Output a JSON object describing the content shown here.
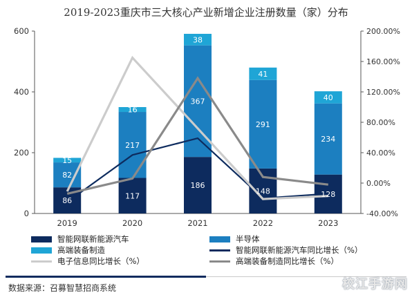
{
  "title": "2019-2023重庆市三大核心产业新增企业注册数量（家）分布",
  "colors": {
    "ev": "#0d2b5e",
    "semi": "#1c7fc0",
    "equip": "#1fa5d6",
    "ev_line": "#0d2b5e",
    "elec_line": "#cccccc",
    "equip_line": "#8a8a8a"
  },
  "legend": {
    "ev": "智能网联新能源汽车",
    "semi": "半导体",
    "equip": "高端装备制造",
    "ev_growth": "智能网联新能源汽车同比增长（%）",
    "elec_growth": "电子信息同比增长（%）",
    "equip_growth": "高端装备制造同比增长（%）"
  },
  "source": "数据来源：召募智慧招商系统",
  "watermark": "校江手游网",
  "chart_data": {
    "type": "bar",
    "stacked": true,
    "categories": [
      "2019",
      "2020",
      "2021",
      "2022",
      "2023"
    ],
    "series": [
      {
        "name": "智能网联新能源汽车",
        "values": [
          86,
          117,
          186,
          148,
          128
        ]
      },
      {
        "name": "半导体",
        "values": [
          82,
          217,
          367,
          291,
          234
        ]
      },
      {
        "name": "高端装备制造",
        "values": [
          15,
          16,
          38,
          41,
          40
        ]
      }
    ],
    "series_labels": [
      [
        "86",
        "117",
        "186",
        "148",
        "128"
      ],
      [
        "82",
        "217",
        "367",
        "291",
        "234"
      ],
      [
        "15",
        "16",
        "38",
        "41",
        "40"
      ]
    ],
    "line_series": [
      {
        "name": "智能网联新能源汽车同比增长（%）",
        "values": [
          -25,
          37,
          59,
          -20,
          -14
        ]
      },
      {
        "name": "电子信息同比增长（%）",
        "values": [
          -11,
          165,
          72,
          -21,
          -17
        ]
      },
      {
        "name": "高端装备制造同比增长（%）",
        "values": [
          -14,
          6,
          138,
          8,
          -2
        ]
      }
    ],
    "left_axis": {
      "ylim": [
        0,
        600
      ],
      "ticks": [
        "0",
        "200",
        "400",
        "600"
      ]
    },
    "right_axis": {
      "ylim": [
        -40,
        200
      ],
      "ticks": [
        "-40.00%",
        "0.00%",
        "40.00%",
        "80.00%",
        "120.00%",
        "160.00%",
        "200.00%"
      ]
    },
    "grid": false,
    "legend_position": "bottom"
  }
}
